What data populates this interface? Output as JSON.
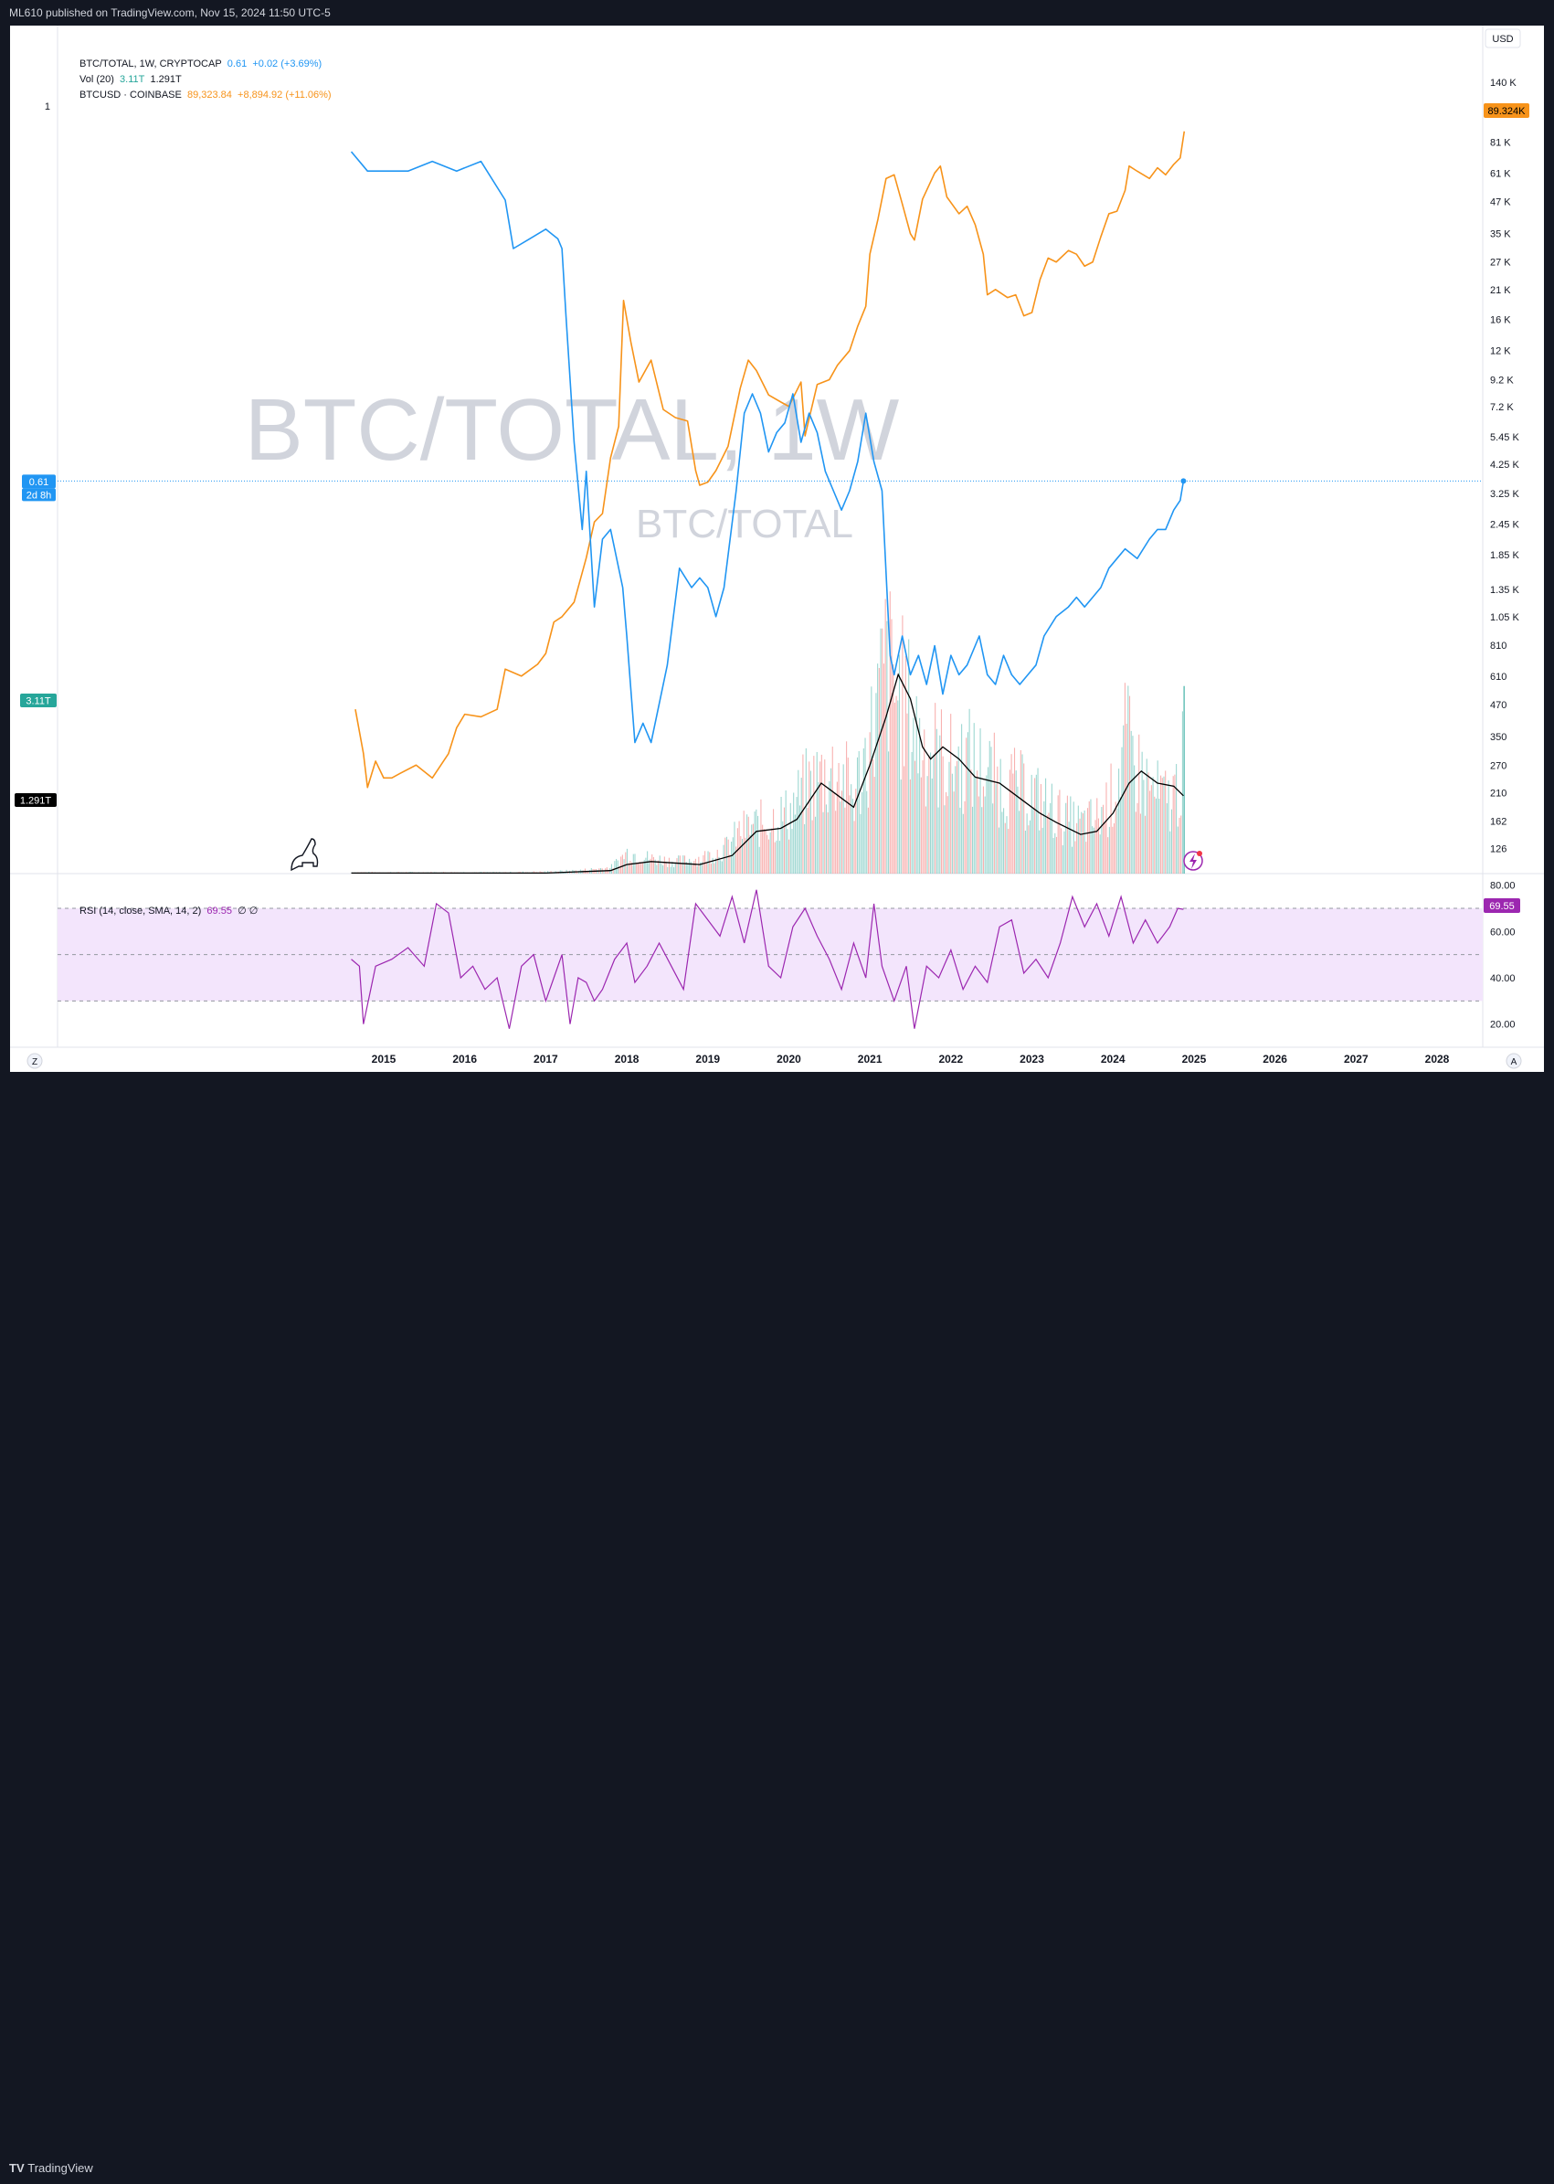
{
  "header": {
    "publisher": "ML610 published on TradingView.com, Nov 15, 2024 11:50 UTC-5"
  },
  "footer": {
    "brand": "TradingView"
  },
  "legend": {
    "main_symbol": "BTC/TOTAL, 1W, CRYPTOCAP",
    "main_value": "0.61",
    "main_change": "+0.02 (+3.69%)",
    "vol_label": "Vol (20)",
    "vol_value": "3.11T",
    "vol_ma": "1.291T",
    "btcusd_symbol": "BTCUSD · COINBASE",
    "btcusd_value": "89,323.84",
    "btcusd_change": "+8,894.92 (+11.06%)"
  },
  "rsi_legend": {
    "label": "RSI (14, close, SMA, 14, 2)",
    "value": "69.55",
    "extra": "∅ ∅"
  },
  "watermark": {
    "big": "BTC/TOTAL, 1W",
    "small": "BTC/TOTAL"
  },
  "badges": {
    "left_price": "0.61",
    "left_time": "2d 8h",
    "left_vol": "3.11T",
    "left_volma": "1.291T",
    "right_price": "89.324K",
    "right_rsi": "69.55",
    "currency": "USD",
    "left_axis_one": "1",
    "z_btn": "Z",
    "a_btn": "A"
  },
  "colors": {
    "btc_total": "#2196f3",
    "btcusd": "#f7931a",
    "vol_ma": "#000000",
    "vol_up": "#26a69a",
    "vol_down": "#ef5350",
    "rsi": "#9c27b0",
    "rsi_band": "#f3e5fc"
  },
  "chart_data": [
    {
      "type": "line",
      "name_ref": "BTC/TOTAL",
      "ylim": [
        0.25,
        1.0
      ],
      "series": [
        {
          "name": "BTC/TOTAL",
          "x": [
            2014.6,
            2014.8,
            2015.0,
            2015.3,
            2015.6,
            2015.9,
            2016.2,
            2016.5,
            2016.6,
            2016.8,
            2017.0,
            2017.15,
            2017.2,
            2017.25,
            2017.35,
            2017.45,
            2017.5,
            2017.6,
            2017.7,
            2017.8,
            2017.95,
            2018.0,
            2018.1,
            2018.2,
            2018.3,
            2018.5,
            2018.65,
            2018.8,
            2018.9,
            2019.0,
            2019.1,
            2019.2,
            2019.35,
            2019.45,
            2019.55,
            2019.65,
            2019.75,
            2019.85,
            2019.95,
            2020.05,
            2020.15,
            2020.25,
            2020.35,
            2020.45,
            2020.55,
            2020.65,
            2020.75,
            2020.85,
            2020.95,
            2021.05,
            2021.15,
            2021.25,
            2021.3,
            2021.4,
            2021.5,
            2021.6,
            2021.7,
            2021.8,
            2021.9,
            2022.0,
            2022.1,
            2022.2,
            2022.35,
            2022.45,
            2022.55,
            2022.65,
            2022.75,
            2022.85,
            2022.95,
            2023.05,
            2023.15,
            2023.3,
            2023.45,
            2023.55,
            2023.65,
            2023.75,
            2023.85,
            2023.95,
            2024.05,
            2024.15,
            2024.3,
            2024.45,
            2024.55,
            2024.65,
            2024.75,
            2024.83,
            2024.87
          ],
          "y": [
            0.95,
            0.93,
            0.93,
            0.93,
            0.94,
            0.93,
            0.94,
            0.9,
            0.85,
            0.86,
            0.87,
            0.86,
            0.85,
            0.78,
            0.65,
            0.56,
            0.62,
            0.48,
            0.55,
            0.56,
            0.5,
            0.45,
            0.34,
            0.36,
            0.34,
            0.42,
            0.52,
            0.5,
            0.51,
            0.5,
            0.47,
            0.5,
            0.6,
            0.68,
            0.7,
            0.68,
            0.64,
            0.66,
            0.67,
            0.7,
            0.65,
            0.68,
            0.66,
            0.62,
            0.6,
            0.58,
            0.6,
            0.63,
            0.68,
            0.63,
            0.6,
            0.43,
            0.41,
            0.45,
            0.41,
            0.43,
            0.4,
            0.44,
            0.39,
            0.43,
            0.41,
            0.42,
            0.45,
            0.41,
            0.4,
            0.43,
            0.41,
            0.4,
            0.41,
            0.42,
            0.45,
            0.47,
            0.48,
            0.49,
            0.48,
            0.49,
            0.5,
            0.52,
            0.53,
            0.54,
            0.53,
            0.55,
            0.56,
            0.56,
            0.58,
            0.59,
            0.61
          ]
        }
      ]
    },
    {
      "type": "line",
      "name_ref": "BTCUSD",
      "ylim": [
        100,
        140000
      ],
      "yscale": "log",
      "series": [
        {
          "name": "BTCUSD",
          "x": [
            2014.65,
            2014.75,
            2014.8,
            2014.9,
            2015.0,
            2015.1,
            2015.2,
            2015.4,
            2015.6,
            2015.8,
            2015.9,
            2016.0,
            2016.2,
            2016.4,
            2016.5,
            2016.7,
            2016.9,
            2017.0,
            2017.1,
            2017.2,
            2017.35,
            2017.5,
            2017.6,
            2017.7,
            2017.8,
            2017.9,
            2017.96,
            2018.05,
            2018.15,
            2018.3,
            2018.45,
            2018.6,
            2018.75,
            2018.85,
            2018.9,
            2019.0,
            2019.1,
            2019.25,
            2019.4,
            2019.5,
            2019.6,
            2019.75,
            2019.9,
            2020.0,
            2020.15,
            2020.2,
            2020.35,
            2020.5,
            2020.6,
            2020.75,
            2020.85,
            2020.95,
            2021.0,
            2021.1,
            2021.2,
            2021.3,
            2021.4,
            2021.5,
            2021.55,
            2021.65,
            2021.8,
            2021.87,
            2021.95,
            2022.1,
            2022.2,
            2022.3,
            2022.4,
            2022.45,
            2022.55,
            2022.7,
            2022.8,
            2022.9,
            2023.0,
            2023.1,
            2023.2,
            2023.3,
            2023.45,
            2023.55,
            2023.65,
            2023.75,
            2023.85,
            2023.95,
            2024.05,
            2024.15,
            2024.2,
            2024.3,
            2024.45,
            2024.55,
            2024.65,
            2024.75,
            2024.83,
            2024.88
          ],
          "y": [
            450,
            300,
            220,
            280,
            240,
            240,
            250,
            270,
            240,
            300,
            380,
            430,
            420,
            450,
            650,
            610,
            680,
            750,
            1000,
            1050,
            1200,
            1800,
            2500,
            2700,
            4500,
            6000,
            19000,
            13000,
            9000,
            11000,
            7000,
            6500,
            6300,
            4000,
            3500,
            3600,
            4000,
            5000,
            8500,
            11000,
            10000,
            8000,
            7500,
            7200,
            9000,
            5500,
            8800,
            9200,
            10500,
            12000,
            15000,
            18000,
            29000,
            40000,
            58000,
            60000,
            46000,
            35000,
            33000,
            48000,
            61000,
            65000,
            49000,
            42000,
            45000,
            38000,
            29000,
            20000,
            21000,
            19500,
            20000,
            16500,
            17000,
            23000,
            28000,
            27000,
            30000,
            29000,
            26000,
            27000,
            34000,
            42000,
            43000,
            52000,
            65000,
            62000,
            58000,
            64000,
            60000,
            66000,
            70000,
            89324
          ]
        }
      ]
    },
    {
      "type": "bar",
      "name_ref": "Vol (20)",
      "ylim": [
        0,
        5000000000000.0
      ],
      "series": [
        {
          "name": "Vol (20)",
          "x": [
            2014.6,
            2015.0,
            2015.5,
            2016.0,
            2016.5,
            2017.0,
            2017.4,
            2017.8,
            2018.0,
            2018.3,
            2018.6,
            2018.9,
            2019.2,
            2019.4,
            2019.6,
            2019.8,
            2020.0,
            2020.2,
            2020.4,
            2020.6,
            2020.8,
            2021.0,
            2021.1,
            2021.2,
            2021.3,
            2021.4,
            2021.5,
            2021.6,
            2021.8,
            2022.0,
            2022.2,
            2022.4,
            2022.6,
            2022.8,
            2023.0,
            2023.2,
            2023.4,
            2023.6,
            2023.8,
            2024.0,
            2024.15,
            2024.3,
            2024.5,
            2024.7,
            2024.85,
            2024.87
          ],
          "y": [
            20000000000.0,
            20000000000.0,
            20000000000.0,
            20000000000.0,
            20000000000.0,
            30000000000.0,
            50000000000.0,
            100000000000.0,
            350000000000.0,
            250000000000.0,
            200000000000.0,
            250000000000.0,
            400000000000.0,
            700000000000.0,
            800000000000.0,
            900000000000.0,
            1000000000000.0,
            1400000000000.0,
            1600000000000.0,
            1700000000000.0,
            1300000000000.0,
            2200000000000.0,
            2800000000000.0,
            3500000000000.0,
            3000000000000.0,
            2900000000000.0,
            2600000000000.0,
            2200000000000.0,
            2000000000000.0,
            1800000000000.0,
            1900000000000.0,
            1700000000000.0,
            1500000000000.0,
            1400000000000.0,
            1300000000000.0,
            1100000000000.0,
            900000000000.0,
            800000000000.0,
            900000000000.0,
            1300000000000.0,
            2200000000000.0,
            1700000000000.0,
            1300000000000.0,
            1200000000000.0,
            1600000000000.0,
            3110000000000.0
          ]
        },
        {
          "name": "Vol MA",
          "x": [
            2014.6,
            2017.0,
            2017.8,
            2018.0,
            2018.3,
            2018.9,
            2019.3,
            2019.6,
            2019.9,
            2020.1,
            2020.4,
            2020.6,
            2020.8,
            2021.0,
            2021.2,
            2021.35,
            2021.5,
            2021.65,
            2021.75,
            2021.9,
            2022.1,
            2022.3,
            2022.6,
            2022.9,
            2023.1,
            2023.3,
            2023.6,
            2023.8,
            2024.0,
            2024.2,
            2024.35,
            2024.55,
            2024.75,
            2024.87
          ],
          "y": [
            10000000000.0,
            10000000000.0,
            50000000000.0,
            150000000000.0,
            200000000000.0,
            150000000000.0,
            300000000000.0,
            700000000000.0,
            750000000000.0,
            900000000000.0,
            1500000000000.0,
            1300000000000.0,
            1100000000000.0,
            1800000000000.0,
            2600000000000.0,
            3300000000000.0,
            2900000000000.0,
            2100000000000.0,
            1900000000000.0,
            2100000000000.0,
            1900000000000.0,
            1600000000000.0,
            1500000000000.0,
            1200000000000.0,
            1000000000000.0,
            850000000000.0,
            650000000000.0,
            700000000000.0,
            1000000000000.0,
            1500000000000.0,
            1700000000000.0,
            1500000000000.0,
            1450000000000.0,
            1291000000000.0
          ]
        }
      ]
    },
    {
      "type": "line",
      "name_ref": "RSI",
      "ylim": [
        10,
        85
      ],
      "series": [
        {
          "name": "RSI",
          "x": [
            2014.6,
            2014.7,
            2014.75,
            2014.9,
            2015.1,
            2015.3,
            2015.5,
            2015.65,
            2015.8,
            2015.95,
            2016.1,
            2016.25,
            2016.4,
            2016.55,
            2016.7,
            2016.85,
            2017.0,
            2017.1,
            2017.2,
            2017.3,
            2017.4,
            2017.5,
            2017.6,
            2017.7,
            2017.85,
            2018.0,
            2018.1,
            2018.25,
            2018.4,
            2018.55,
            2018.7,
            2018.85,
            2019.0,
            2019.15,
            2019.3,
            2019.45,
            2019.6,
            2019.75,
            2019.9,
            2020.05,
            2020.2,
            2020.35,
            2020.5,
            2020.65,
            2020.8,
            2020.95,
            2021.05,
            2021.15,
            2021.3,
            2021.45,
            2021.55,
            2021.7,
            2021.85,
            2022.0,
            2022.15,
            2022.3,
            2022.45,
            2022.6,
            2022.75,
            2022.9,
            2023.05,
            2023.2,
            2023.35,
            2023.5,
            2023.65,
            2023.8,
            2023.95,
            2024.1,
            2024.25,
            2024.4,
            2024.55,
            2024.7,
            2024.8,
            2024.87
          ],
          "y": [
            48,
            45,
            20,
            45,
            48,
            53,
            45,
            72,
            68,
            40,
            45,
            35,
            40,
            18,
            45,
            50,
            30,
            40,
            50,
            20,
            40,
            38,
            30,
            35,
            48,
            55,
            38,
            45,
            55,
            45,
            35,
            72,
            65,
            58,
            75,
            55,
            78,
            45,
            40,
            62,
            70,
            58,
            48,
            35,
            55,
            40,
            72,
            45,
            30,
            45,
            18,
            45,
            40,
            52,
            35,
            45,
            38,
            62,
            65,
            42,
            48,
            40,
            55,
            75,
            62,
            72,
            58,
            75,
            55,
            65,
            55,
            62,
            70,
            69.55
          ]
        }
      ]
    }
  ],
  "axes": {
    "right_price_ticks": [
      "140 K",
      "105 K",
      "81 K",
      "61 K",
      "47 K",
      "35 K",
      "27 K",
      "21 K",
      "16 K",
      "12 K",
      "9.2 K",
      "7.2 K",
      "5.45 K",
      "4.25 K",
      "3.25 K",
      "2.45 K",
      "1.85 K",
      "1.35 K",
      "1.05 K",
      "810",
      "610",
      "470",
      "350",
      "270",
      "210",
      "162",
      "126"
    ],
    "right_rsi_ticks": [
      "80.00",
      "60.00",
      "40.00",
      "20.00"
    ],
    "x_ticks": [
      "2015",
      "2016",
      "2017",
      "2018",
      "2019",
      "2020",
      "2021",
      "2022",
      "2023",
      "2024",
      "2025",
      "2026",
      "2027",
      "2028"
    ]
  }
}
